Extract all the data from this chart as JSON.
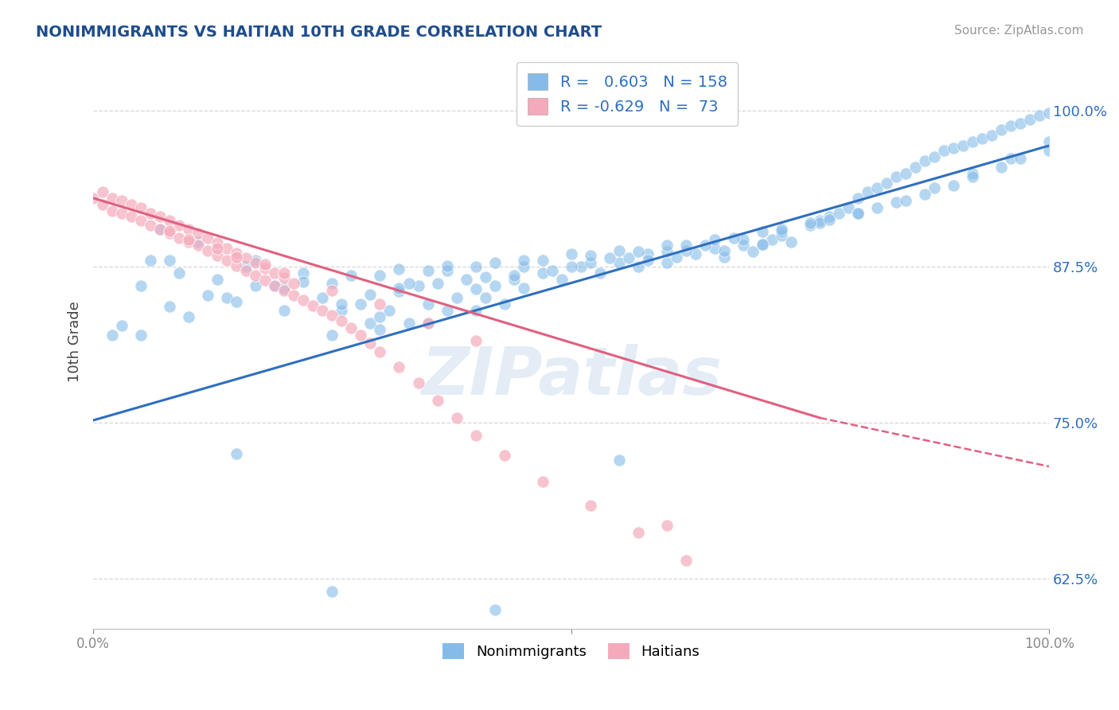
{
  "title": "NONIMMIGRANTS VS HAITIAN 10TH GRADE CORRELATION CHART",
  "source": "Source: ZipAtlas.com",
  "ylabel": "10th Grade",
  "yticks": [
    "62.5%",
    "75.0%",
    "87.5%",
    "100.0%"
  ],
  "ytick_vals": [
    0.625,
    0.75,
    0.875,
    1.0
  ],
  "xlim": [
    0.0,
    1.0
  ],
  "ylim": [
    0.585,
    1.045
  ],
  "blue_R": 0.603,
  "blue_N": 158,
  "pink_R": -0.629,
  "pink_N": 73,
  "blue_color": "#85BBE8",
  "pink_color": "#F5AABB",
  "blue_line_color": "#2E6FBF",
  "pink_line_color": "#E06080",
  "title_color": "#1E4D8C",
  "ylabel_color": "#444444",
  "background_color": "#ffffff",
  "grid_color": "#cccccc",
  "watermark": "ZIPatlas",
  "blue_line_y_start": 0.752,
  "blue_line_y_end": 0.972,
  "pink_line_y_start": 0.93,
  "pink_line_solid_end_x": 0.76,
  "pink_line_solid_end_y": 0.754,
  "pink_line_dash_end_x": 1.0,
  "pink_line_dash_end_y": 0.715,
  "blue_scatter_x": [
    0.02,
    0.05,
    0.06,
    0.07,
    0.08,
    0.09,
    0.11,
    0.13,
    0.14,
    0.16,
    0.17,
    0.19,
    0.2,
    0.22,
    0.24,
    0.25,
    0.26,
    0.28,
    0.29,
    0.3,
    0.31,
    0.32,
    0.33,
    0.34,
    0.35,
    0.37,
    0.38,
    0.39,
    0.4,
    0.41,
    0.42,
    0.43,
    0.44,
    0.45,
    0.47,
    0.49,
    0.51,
    0.53,
    0.55,
    0.57,
    0.58,
    0.6,
    0.61,
    0.63,
    0.65,
    0.66,
    0.68,
    0.69,
    0.7,
    0.71,
    0.72,
    0.73,
    0.75,
    0.76,
    0.77,
    0.78,
    0.79,
    0.8,
    0.81,
    0.82,
    0.83,
    0.84,
    0.85,
    0.86,
    0.87,
    0.88,
    0.89,
    0.9,
    0.91,
    0.92,
    0.93,
    0.94,
    0.95,
    0.96,
    0.97,
    0.98,
    0.99,
    1.0,
    0.33,
    0.37,
    0.41,
    0.45,
    0.5,
    0.54,
    0.58,
    0.62,
    0.66,
    0.7,
    0.3,
    0.35,
    0.26,
    0.29,
    0.32,
    0.36,
    0.4,
    0.44,
    0.48,
    0.52,
    0.56,
    0.6,
    0.64,
    0.68,
    0.72,
    0.76,
    0.8,
    0.84,
    0.88,
    0.92,
    0.96,
    1.0,
    0.05,
    0.1,
    0.15,
    0.2,
    0.25,
    0.3,
    0.35,
    0.4,
    0.45,
    0.5,
    0.55,
    0.6,
    0.65,
    0.7,
    0.75,
    0.8,
    0.85,
    0.9,
    0.95,
    1.0,
    0.03,
    0.08,
    0.12,
    0.17,
    0.22,
    0.27,
    0.32,
    0.37,
    0.42,
    0.47,
    0.52,
    0.57,
    0.62,
    0.67,
    0.72,
    0.77,
    0.82,
    0.87,
    0.92,
    0.97,
    0.15,
    0.55,
    0.25,
    0.42
  ],
  "blue_scatter_y": [
    0.82,
    0.86,
    0.88,
    0.905,
    0.88,
    0.87,
    0.895,
    0.865,
    0.85,
    0.875,
    0.88,
    0.86,
    0.84,
    0.87,
    0.85,
    0.82,
    0.84,
    0.845,
    0.83,
    0.825,
    0.84,
    0.855,
    0.83,
    0.86,
    0.83,
    0.84,
    0.85,
    0.865,
    0.84,
    0.85,
    0.86,
    0.845,
    0.865,
    0.858,
    0.87,
    0.865,
    0.875,
    0.87,
    0.878,
    0.875,
    0.885,
    0.878,
    0.883,
    0.885,
    0.89,
    0.883,
    0.892,
    0.887,
    0.893,
    0.897,
    0.9,
    0.895,
    0.908,
    0.912,
    0.915,
    0.918,
    0.922,
    0.93,
    0.935,
    0.938,
    0.942,
    0.947,
    0.95,
    0.955,
    0.96,
    0.963,
    0.968,
    0.97,
    0.972,
    0.975,
    0.978,
    0.98,
    0.985,
    0.988,
    0.99,
    0.993,
    0.996,
    0.998,
    0.862,
    0.872,
    0.867,
    0.875,
    0.875,
    0.882,
    0.88,
    0.888,
    0.888,
    0.893,
    0.835,
    0.845,
    0.845,
    0.853,
    0.858,
    0.862,
    0.857,
    0.868,
    0.872,
    0.878,
    0.882,
    0.887,
    0.892,
    0.897,
    0.903,
    0.91,
    0.918,
    0.927,
    0.938,
    0.95,
    0.962,
    0.975,
    0.82,
    0.835,
    0.847,
    0.858,
    0.862,
    0.868,
    0.872,
    0.875,
    0.88,
    0.885,
    0.888,
    0.892,
    0.897,
    0.903,
    0.91,
    0.918,
    0.928,
    0.94,
    0.955,
    0.968,
    0.828,
    0.843,
    0.852,
    0.86,
    0.863,
    0.868,
    0.873,
    0.876,
    0.878,
    0.88,
    0.884,
    0.887,
    0.892,
    0.898,
    0.905,
    0.913,
    0.922,
    0.933,
    0.947,
    0.962,
    0.725,
    0.72,
    0.615,
    0.6
  ],
  "pink_scatter_x": [
    0.0,
    0.01,
    0.01,
    0.02,
    0.02,
    0.03,
    0.03,
    0.04,
    0.04,
    0.05,
    0.05,
    0.06,
    0.06,
    0.07,
    0.07,
    0.08,
    0.08,
    0.09,
    0.09,
    0.1,
    0.1,
    0.11,
    0.11,
    0.12,
    0.12,
    0.13,
    0.13,
    0.14,
    0.14,
    0.15,
    0.15,
    0.16,
    0.16,
    0.17,
    0.17,
    0.18,
    0.18,
    0.19,
    0.19,
    0.2,
    0.2,
    0.21,
    0.21,
    0.22,
    0.23,
    0.24,
    0.25,
    0.26,
    0.27,
    0.28,
    0.29,
    0.3,
    0.32,
    0.34,
    0.36,
    0.38,
    0.4,
    0.43,
    0.47,
    0.52,
    0.57,
    0.62,
    0.1,
    0.15,
    0.2,
    0.25,
    0.3,
    0.35,
    0.4,
    0.08,
    0.13,
    0.18,
    0.6
  ],
  "pink_scatter_y": [
    0.93,
    0.925,
    0.935,
    0.92,
    0.93,
    0.918,
    0.928,
    0.915,
    0.925,
    0.912,
    0.922,
    0.908,
    0.918,
    0.905,
    0.915,
    0.902,
    0.912,
    0.898,
    0.908,
    0.895,
    0.905,
    0.892,
    0.902,
    0.888,
    0.898,
    0.884,
    0.894,
    0.88,
    0.89,
    0.876,
    0.886,
    0.872,
    0.882,
    0.868,
    0.878,
    0.864,
    0.874,
    0.86,
    0.87,
    0.856,
    0.866,
    0.852,
    0.862,
    0.848,
    0.844,
    0.84,
    0.836,
    0.832,
    0.826,
    0.82,
    0.814,
    0.807,
    0.795,
    0.782,
    0.768,
    0.754,
    0.74,
    0.724,
    0.703,
    0.684,
    0.662,
    0.64,
    0.897,
    0.883,
    0.87,
    0.856,
    0.845,
    0.83,
    0.816,
    0.904,
    0.89,
    0.877,
    0.668
  ]
}
